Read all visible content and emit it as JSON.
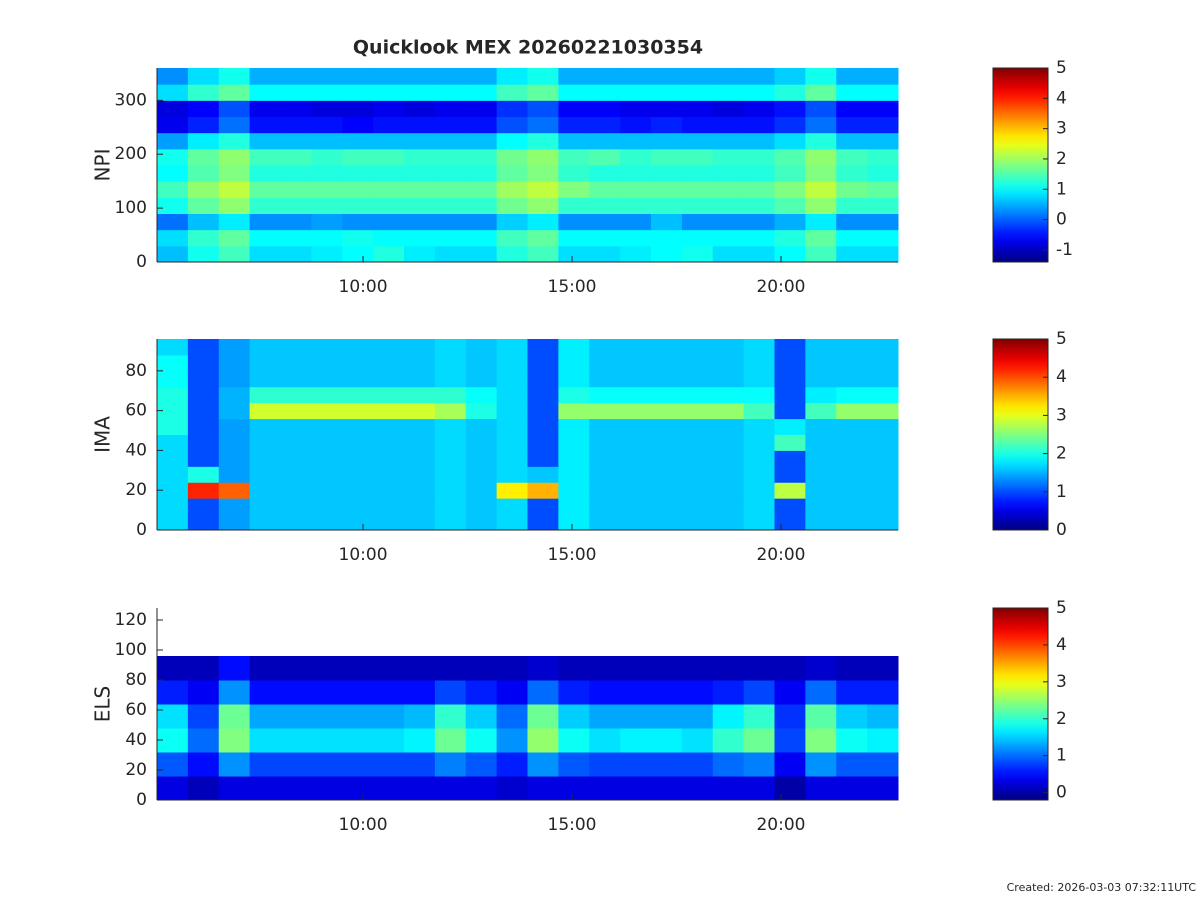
{
  "footer": "Created: 2026-03-03 07:32:11UTC",
  "chart_data": [
    {
      "type": "heatmap",
      "title": "Quicklook MEX 20260221030354",
      "ylabel": "NPI",
      "colormap": "jet",
      "xlim": [
        5.07,
        22.8
      ],
      "xticks": [
        {
          "value": 10,
          "label": "10:00"
        },
        {
          "value": 15,
          "label": "15:00"
        },
        {
          "value": 20,
          "label": "20:00"
        }
      ],
      "ylim": [
        0,
        360
      ],
      "yticks": [
        0,
        100,
        200,
        300
      ],
      "clim": [
        -1.4,
        5
      ],
      "cticks": [
        -1,
        0,
        1,
        2,
        3,
        4,
        5
      ],
      "z": [
        [
          0.6,
          1.1,
          1.4,
          0.8,
          0.8,
          0.9,
          1.0,
          1.2,
          0.9,
          0.8,
          0.8,
          1.2,
          1.4,
          0.8,
          0.8,
          0.9,
          1.0,
          1.1,
          0.8,
          0.8,
          1.0,
          1.4,
          0.8,
          0.8
        ],
        [
          0.8,
          1.3,
          1.6,
          1.0,
          1.0,
          1.0,
          1.1,
          1.0,
          1.0,
          1.0,
          1.0,
          1.4,
          1.6,
          1.0,
          1.0,
          1.0,
          1.0,
          1.0,
          1.0,
          1.0,
          1.2,
          1.6,
          1.0,
          1.0
        ],
        [
          0.1,
          0.6,
          0.9,
          0.3,
          0.3,
          0.4,
          0.3,
          0.3,
          0.3,
          0.3,
          0.3,
          0.7,
          0.9,
          0.3,
          0.3,
          0.3,
          0.6,
          0.3,
          0.3,
          0.3,
          0.5,
          0.9,
          0.3,
          0.3
        ],
        [
          1.1,
          1.6,
          1.9,
          1.3,
          1.3,
          1.3,
          1.3,
          1.3,
          1.3,
          1.3,
          1.3,
          1.7,
          1.9,
          1.3,
          1.3,
          1.3,
          1.3,
          1.3,
          1.3,
          1.3,
          1.5,
          1.9,
          1.3,
          1.3
        ],
        [
          1.4,
          1.9,
          2.2,
          1.6,
          1.6,
          1.6,
          1.6,
          1.6,
          1.6,
          1.6,
          1.6,
          2.0,
          2.2,
          1.8,
          1.6,
          1.6,
          1.6,
          1.6,
          1.6,
          1.6,
          1.8,
          2.2,
          1.7,
          1.6
        ],
        [
          1.0,
          1.5,
          1.8,
          1.2,
          1.2,
          1.2,
          1.2,
          1.2,
          1.2,
          1.2,
          1.2,
          1.6,
          1.8,
          1.3,
          1.2,
          1.2,
          1.2,
          1.2,
          1.2,
          1.2,
          1.4,
          1.8,
          1.3,
          1.2
        ],
        [
          1.1,
          1.6,
          1.9,
          1.4,
          1.4,
          1.3,
          1.4,
          1.4,
          1.3,
          1.3,
          1.3,
          1.7,
          1.9,
          1.4,
          1.5,
          1.3,
          1.4,
          1.4,
          1.3,
          1.3,
          1.5,
          1.9,
          1.4,
          1.3
        ],
        [
          0.4,
          0.9,
          1.2,
          0.6,
          0.6,
          0.6,
          0.6,
          0.6,
          0.6,
          0.6,
          0.6,
          1.0,
          1.2,
          0.6,
          0.6,
          0.6,
          0.6,
          0.6,
          0.6,
          0.6,
          0.8,
          1.2,
          0.6,
          0.6
        ],
        [
          -0.7,
          -0.4,
          0.1,
          -0.5,
          -0.5,
          -0.5,
          -0.6,
          -0.5,
          -0.5,
          -0.5,
          -0.5,
          -0.1,
          0.1,
          -0.4,
          -0.4,
          -0.5,
          -0.4,
          -0.5,
          -0.5,
          -0.5,
          -0.3,
          0.1,
          -0.4,
          -0.4
        ],
        [
          -0.8,
          -0.6,
          -0.1,
          -0.7,
          -0.7,
          -0.8,
          -0.8,
          -0.7,
          -0.8,
          -0.7,
          -0.7,
          -0.3,
          -0.1,
          -0.6,
          -0.6,
          -0.7,
          -0.7,
          -0.7,
          -0.8,
          -0.7,
          -0.5,
          -0.1,
          -0.6,
          -0.6
        ],
        [
          0.8,
          1.3,
          1.6,
          1.0,
          1.0,
          1.0,
          1.0,
          1.0,
          1.0,
          1.0,
          1.0,
          1.4,
          1.6,
          1.0,
          1.0,
          1.0,
          1.0,
          1.0,
          1.0,
          1.0,
          1.2,
          1.6,
          1.0,
          1.0
        ],
        [
          0.3,
          0.8,
          1.1,
          0.5,
          0.5,
          0.5,
          0.5,
          0.5,
          0.5,
          0.5,
          0.5,
          0.9,
          1.1,
          0.5,
          0.5,
          0.5,
          0.5,
          0.5,
          0.5,
          0.5,
          0.7,
          1.1,
          0.5,
          0.5
        ]
      ]
    },
    {
      "type": "heatmap",
      "ylabel": "IMA",
      "colormap": "jet",
      "xlim": [
        5.07,
        22.8
      ],
      "xticks": [
        {
          "value": 10,
          "label": "10:00"
        },
        {
          "value": 15,
          "label": "15:00"
        },
        {
          "value": 20,
          "label": "20:00"
        }
      ],
      "ylim": [
        0,
        96
      ],
      "yticks": [
        0,
        20,
        40,
        60,
        80
      ],
      "clim": [
        0,
        5
      ],
      "cticks": [
        0,
        1,
        2,
        3,
        4,
        5
      ],
      "z": [
        [
          1.7,
          1.0,
          1.4,
          1.6,
          1.6,
          1.6,
          1.6,
          1.6,
          1.6,
          1.7,
          1.6,
          1.7,
          1.0,
          1.8,
          1.6,
          1.6,
          1.6,
          1.6,
          1.6,
          1.7,
          1.0,
          1.6,
          1.6,
          1.6
        ],
        [
          1.7,
          1.0,
          1.4,
          1.6,
          1.6,
          1.6,
          1.6,
          1.6,
          1.6,
          1.7,
          1.6,
          1.7,
          1.0,
          1.8,
          1.6,
          1.6,
          1.6,
          1.6,
          1.6,
          1.7,
          1.0,
          1.6,
          1.6,
          1.6
        ],
        [
          1.7,
          4.2,
          3.9,
          1.6,
          1.6,
          1.6,
          1.6,
          1.6,
          1.6,
          1.7,
          1.6,
          3.2,
          3.5,
          1.8,
          1.6,
          1.6,
          1.6,
          1.6,
          1.6,
          1.7,
          2.8,
          1.6,
          1.6,
          1.6
        ],
        [
          1.7,
          2.0,
          1.4,
          1.6,
          1.6,
          1.6,
          1.6,
          1.6,
          1.6,
          1.7,
          1.6,
          1.7,
          1.6,
          1.8,
          1.6,
          1.6,
          1.6,
          1.6,
          1.6,
          1.7,
          1.0,
          1.6,
          1.6,
          1.6
        ],
        [
          1.7,
          1.0,
          1.4,
          1.6,
          1.6,
          1.6,
          1.6,
          1.6,
          1.6,
          1.7,
          1.6,
          1.7,
          1.0,
          1.8,
          1.6,
          1.6,
          1.6,
          1.6,
          1.6,
          1.7,
          1.0,
          1.6,
          1.6,
          1.6
        ],
        [
          1.7,
          1.0,
          1.4,
          1.6,
          1.6,
          1.6,
          1.6,
          1.6,
          1.6,
          1.7,
          1.6,
          1.7,
          1.0,
          1.8,
          1.6,
          1.6,
          1.6,
          1.6,
          1.6,
          1.7,
          2.2,
          1.6,
          1.6,
          1.6
        ],
        [
          2.0,
          1.0,
          1.4,
          1.6,
          1.6,
          1.6,
          1.6,
          1.6,
          1.6,
          1.7,
          1.6,
          1.7,
          1.0,
          1.8,
          1.6,
          1.6,
          1.6,
          1.6,
          1.6,
          1.7,
          1.8,
          1.6,
          1.6,
          1.6
        ],
        [
          2.0,
          1.0,
          1.5,
          2.9,
          2.9,
          2.9,
          2.9,
          2.9,
          2.9,
          2.7,
          2.0,
          1.7,
          1.0,
          2.6,
          2.6,
          2.6,
          2.6,
          2.6,
          2.6,
          2.2,
          1.0,
          2.2,
          2.6,
          2.6
        ],
        [
          2.0,
          1.0,
          1.5,
          2.1,
          2.1,
          2.1,
          2.1,
          2.1,
          2.1,
          2.1,
          1.9,
          1.7,
          1.0,
          2.0,
          1.9,
          1.9,
          1.9,
          1.9,
          1.9,
          1.9,
          1.0,
          1.8,
          1.9,
          1.9
        ],
        [
          1.9,
          1.0,
          1.4,
          1.6,
          1.6,
          1.6,
          1.6,
          1.6,
          1.6,
          1.7,
          1.6,
          1.7,
          1.0,
          1.8,
          1.6,
          1.6,
          1.6,
          1.6,
          1.6,
          1.7,
          1.0,
          1.6,
          1.6,
          1.6
        ],
        [
          1.9,
          1.0,
          1.4,
          1.6,
          1.6,
          1.6,
          1.6,
          1.6,
          1.6,
          1.7,
          1.6,
          1.7,
          1.0,
          1.8,
          1.6,
          1.6,
          1.6,
          1.6,
          1.6,
          1.7,
          1.0,
          1.6,
          1.6,
          1.6
        ],
        [
          1.7,
          1.0,
          1.4,
          1.6,
          1.6,
          1.6,
          1.6,
          1.6,
          1.6,
          1.7,
          1.6,
          1.7,
          1.0,
          1.8,
          1.6,
          1.6,
          1.6,
          1.6,
          1.6,
          1.7,
          1.0,
          1.6,
          1.6,
          1.6
        ]
      ]
    },
    {
      "type": "heatmap",
      "ylabel": "ELS",
      "colormap": "jet",
      "xlim": [
        5.07,
        22.8
      ],
      "xticks": [
        {
          "value": 10,
          "label": "10:00"
        },
        {
          "value": 15,
          "label": "15:00"
        },
        {
          "value": 20,
          "label": "20:00"
        }
      ],
      "ylim": [
        0,
        128
      ],
      "yticks": [
        0,
        20,
        40,
        60,
        80,
        100,
        120
      ],
      "clim": [
        -0.2,
        5
      ],
      "cticks": [
        0,
        1,
        2,
        3,
        4,
        5
      ],
      "z": [
        [
          0.3,
          0.1,
          0.3,
          0.3,
          0.3,
          0.3,
          0.3,
          0.3,
          0.3,
          0.3,
          0.3,
          0.2,
          0.3,
          0.3,
          0.3,
          0.3,
          0.3,
          0.3,
          0.3,
          0.3,
          0.0,
          0.3,
          0.3,
          0.3
        ],
        [
          0.9,
          0.5,
          1.2,
          0.8,
          0.8,
          0.8,
          0.8,
          0.8,
          0.8,
          1.1,
          0.9,
          0.6,
          1.2,
          0.9,
          0.8,
          0.8,
          0.8,
          0.8,
          1.0,
          1.1,
          0.4,
          1.2,
          0.9,
          0.9
        ],
        [
          1.8,
          1.0,
          2.4,
          1.6,
          1.6,
          1.6,
          1.6,
          1.6,
          1.7,
          2.3,
          1.8,
          1.2,
          2.5,
          1.8,
          1.6,
          1.7,
          1.7,
          1.6,
          2.0,
          2.3,
          0.8,
          2.4,
          1.8,
          1.7
        ],
        [
          1.6,
          0.8,
          2.3,
          1.3,
          1.3,
          1.3,
          1.3,
          1.3,
          1.4,
          2.0,
          1.5,
          1.0,
          2.3,
          1.5,
          1.3,
          1.3,
          1.3,
          1.3,
          1.7,
          2.0,
          0.7,
          2.2,
          1.5,
          1.4
        ],
        [
          0.6,
          0.4,
          1.2,
          0.5,
          0.5,
          0.5,
          0.5,
          0.5,
          0.5,
          0.8,
          0.6,
          0.4,
          1.0,
          0.6,
          0.5,
          0.5,
          0.5,
          0.5,
          0.6,
          0.8,
          0.4,
          1.0,
          0.6,
          0.6
        ],
        [
          0.1,
          0.1,
          0.5,
          0.1,
          0.1,
          0.1,
          0.1,
          0.1,
          0.1,
          0.1,
          0.1,
          0.1,
          0.2,
          0.1,
          0.1,
          0.1,
          0.1,
          0.1,
          0.1,
          0.1,
          0.1,
          0.2,
          0.1,
          0.1
        ],
        [
          null,
          null,
          null,
          null,
          null,
          null,
          null,
          null,
          null,
          null,
          null,
          null,
          null,
          null,
          null,
          null,
          null,
          null,
          null,
          null,
          null,
          null,
          null,
          null
        ],
        [
          null,
          null,
          null,
          null,
          null,
          null,
          null,
          null,
          null,
          null,
          null,
          null,
          null,
          null,
          null,
          null,
          null,
          null,
          null,
          null,
          null,
          null,
          null,
          null
        ]
      ]
    }
  ]
}
